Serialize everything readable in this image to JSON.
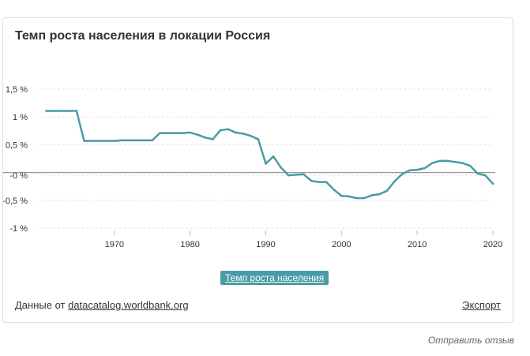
{
  "card": {
    "title": "Темп роста населения в локации Россия",
    "legend_label": "Темп роста населения",
    "source_prefix": "Данные от ",
    "source_link": "datacatalog.worldbank.org",
    "export_label": "Экспорт"
  },
  "feedback_label": "Отправить отзыв",
  "colors": {
    "line": "#4a9ba6",
    "zero_line": "#999999",
    "grid": "#e3e3e3"
  },
  "chart_data": {
    "type": "line",
    "title": "Темп роста населения в локации Россия",
    "xlabel": "",
    "ylabel": "",
    "xlim": [
      1960,
      2020
    ],
    "ylim": [
      -1.1,
      1.6
    ],
    "x_ticks": [
      {
        "value": 1970,
        "label": "1970"
      },
      {
        "value": 1980,
        "label": "1980"
      },
      {
        "value": 1990,
        "label": "1990"
      },
      {
        "value": 2000,
        "label": "2000"
      },
      {
        "value": 2010,
        "label": "2010"
      },
      {
        "value": 2020,
        "label": "2020"
      }
    ],
    "y_ticks": [
      {
        "value": 1.5,
        "label": "1,5 %"
      },
      {
        "value": 1,
        "label": "1 %"
      },
      {
        "value": 0.5,
        "label": "0,5 %"
      },
      {
        "value": -0.05,
        "label": "-0 %"
      },
      {
        "value": -0.5,
        "label": "-0,5 %"
      },
      {
        "value": -1,
        "label": "-1 %"
      }
    ],
    "grid": true,
    "series": [
      {
        "name": "Темп роста населения",
        "x": [
          1961,
          1962,
          1963,
          1964,
          1965,
          1966,
          1967,
          1968,
          1969,
          1970,
          1971,
          1972,
          1973,
          1974,
          1975,
          1976,
          1977,
          1978,
          1979,
          1980,
          1981,
          1982,
          1983,
          1984,
          1985,
          1986,
          1987,
          1988,
          1989,
          1990,
          1991,
          1992,
          1993,
          1994,
          1995,
          1996,
          1997,
          1998,
          1999,
          2000,
          2001,
          2002,
          2003,
          2004,
          2005,
          2006,
          2007,
          2008,
          2009,
          2010,
          2011,
          2012,
          2013,
          2014,
          2015,
          2016,
          2017,
          2018,
          2019,
          2020
        ],
        "values": [
          1.11,
          1.11,
          1.11,
          1.11,
          1.11,
          0.57,
          0.57,
          0.57,
          0.57,
          0.57,
          0.58,
          0.58,
          0.58,
          0.58,
          0.58,
          0.71,
          0.71,
          0.71,
          0.71,
          0.72,
          0.68,
          0.63,
          0.6,
          0.76,
          0.78,
          0.72,
          0.7,
          0.66,
          0.6,
          0.16,
          0.29,
          0.09,
          -0.05,
          -0.04,
          -0.03,
          -0.15,
          -0.17,
          -0.17,
          -0.31,
          -0.42,
          -0.43,
          -0.46,
          -0.46,
          -0.41,
          -0.39,
          -0.33,
          -0.16,
          -0.03,
          0.04,
          0.05,
          0.08,
          0.17,
          0.21,
          0.21,
          0.19,
          0.17,
          0.12,
          -0.02,
          -0.05,
          -0.2
        ]
      }
    ]
  }
}
